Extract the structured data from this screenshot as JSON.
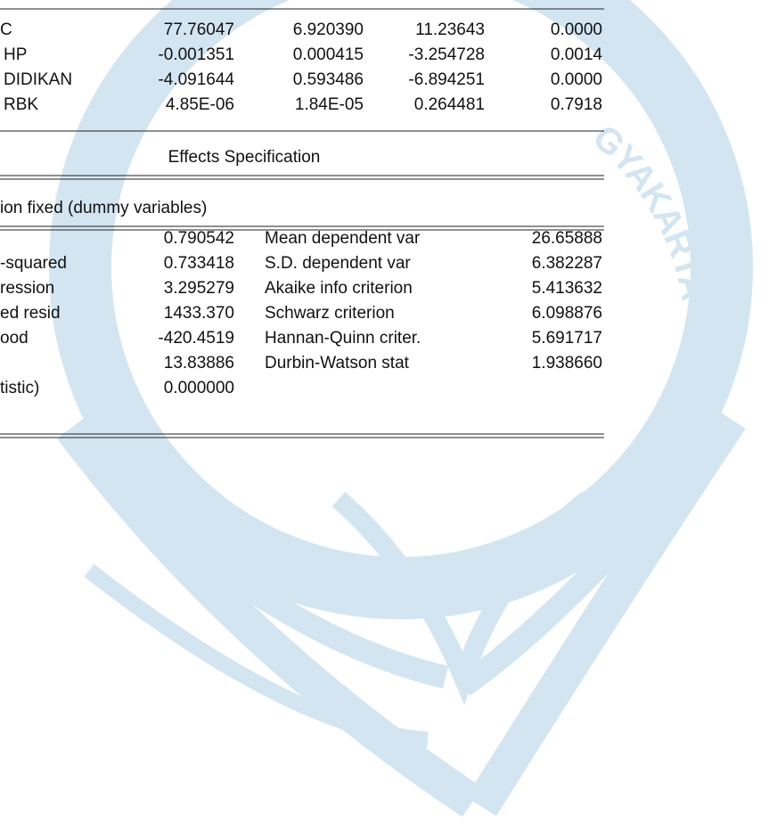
{
  "coefficients": [
    [
      "C",
      "77.76047",
      "6.920390",
      "11.23643",
      "0.0000"
    ],
    [
      "HP",
      "-0.001351",
      "0.000415",
      "-3.254728",
      "0.0014"
    ],
    [
      "DIDIKAN",
      "-4.091644",
      "0.593486",
      "-6.894251",
      "0.0000"
    ],
    [
      "RBK",
      "4.85E-06",
      "1.84E-05",
      "0.264481",
      "0.7918"
    ]
  ],
  "effects": {
    "heading": "Effects Specification",
    "note": "ion fixed (dummy variables)"
  },
  "stats": [
    {
      "value": "0.790542",
      "label2": "Mean dependent var",
      "value2": "26.65888"
    },
    {
      "label": "-squared",
      "value": "0.733418",
      "label2": "S.D. dependent var",
      "value2": "6.382287"
    },
    {
      "label": "ression",
      "value": "3.295279",
      "label2": "Akaike info criterion",
      "value2": "5.413632"
    },
    {
      "label": "ed resid",
      "value": "1433.370",
      "label2": "Schwarz criterion",
      "value2": "6.098876"
    },
    {
      "label": "ood",
      "value": "-420.4519",
      "label2": "Hannan-Quinn criter.",
      "value2": "5.691717"
    },
    {
      "value": "13.83886",
      "label2": "Durbin-Watson stat",
      "value2": "1.938660"
    },
    {
      "label": "tistic)",
      "value": "0.000000"
    }
  ],
  "watermark": {
    "text": "GYAKARTA"
  }
}
